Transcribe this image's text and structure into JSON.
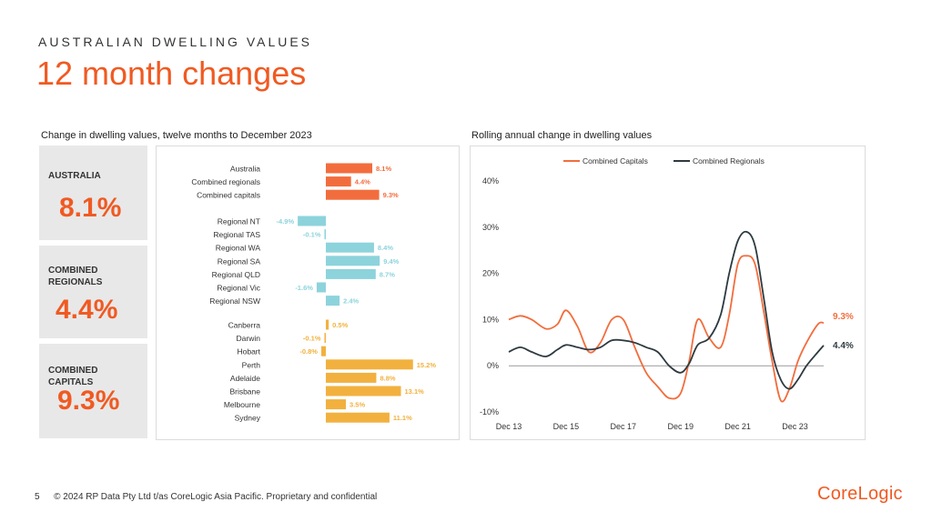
{
  "header": {
    "kicker": "AUSTRALIAN DWELLING VALUES",
    "title": "12 month changes"
  },
  "left_panel": {
    "title": "Change in dwelling values, twelve months to December 2023"
  },
  "right_panel": {
    "title": "Rolling annual change in dwelling values"
  },
  "stats": [
    {
      "label_line1": "AUSTRALIA",
      "label_line2": "",
      "value": "8.1%"
    },
    {
      "label_line1": "COMBINED",
      "label_line2": "REGIONALS",
      "value": "4.4%"
    },
    {
      "label_line1": "COMBINED",
      "label_line2": "CAPITALS",
      "value": "9.3%"
    }
  ],
  "colors": {
    "accent": "#f05a22",
    "combined": "#f26d3d",
    "regional": "#8dd3dc",
    "capital": "#f2b13e",
    "regional_line": "#2d3a40",
    "capitals_line": "#f26d3d"
  },
  "chart_data": [
    {
      "type": "bar",
      "orientation": "horizontal",
      "title": "Change in dwelling values, twelve months to December 2023",
      "groups": [
        {
          "name": "combined",
          "categories": [
            "Australia",
            "Combined regionals",
            "Combined capitals"
          ],
          "values": [
            8.1,
            4.4,
            9.3
          ],
          "labels": [
            "8.1%",
            "4.4%",
            "9.3%"
          ]
        },
        {
          "name": "regional",
          "categories": [
            "Regional NT",
            "Regional TAS",
            "Regional WA",
            "Regional SA",
            "Regional QLD",
            "Regional Vic",
            "Regional NSW"
          ],
          "values": [
            -4.9,
            -0.1,
            8.4,
            9.4,
            8.7,
            -1.6,
            2.4
          ],
          "labels": [
            "-4.9%",
            "-0.1%",
            "8.4%",
            "9.4%",
            "8.7%",
            "-1.6%",
            "2.4%"
          ]
        },
        {
          "name": "capital",
          "categories": [
            "Canberra",
            "Darwin",
            "Hobart",
            "Perth",
            "Adelaide",
            "Brisbane",
            "Melbourne",
            "Sydney"
          ],
          "values": [
            0.5,
            -0.1,
            -0.8,
            15.2,
            8.8,
            13.1,
            3.5,
            11.1
          ],
          "labels": [
            "0.5%",
            "-0.1%",
            "-0.8%",
            "15.2%",
            "8.8%",
            "13.1%",
            "3.5%",
            "11.1%"
          ]
        }
      ]
    },
    {
      "type": "line",
      "title": "Rolling annual change in dwelling values",
      "legend": [
        "Combined Capitals",
        "Combined Regionals"
      ],
      "legend_position": "top",
      "x_range": [
        2013,
        2024
      ],
      "x_ticks": [
        2013,
        2015,
        2017,
        2019,
        2021,
        2023
      ],
      "x_tick_labels": [
        "Dec 13",
        "Dec 15",
        "Dec 17",
        "Dec 19",
        "Dec 21",
        "Dec 23"
      ],
      "ylim": [
        -10,
        40
      ],
      "y_ticks": [
        -10,
        0,
        10,
        20,
        30,
        40
      ],
      "y_tick_labels": [
        "-10%",
        "0%",
        "10%",
        "20%",
        "30%",
        "40%"
      ],
      "series": [
        {
          "name": "Combined Capitals",
          "end_label": "9.3%",
          "x": [
            2013.0,
            2013.4,
            2013.8,
            2014.3,
            2014.7,
            2015.0,
            2015.4,
            2015.8,
            2016.2,
            2016.6,
            2017.0,
            2017.4,
            2017.8,
            2018.2,
            2018.6,
            2019.0,
            2019.3,
            2019.6,
            2020.0,
            2020.4,
            2020.7,
            2021.0,
            2021.3,
            2021.6,
            2021.9,
            2022.2,
            2022.5,
            2022.8,
            2023.1,
            2023.4,
            2023.8,
            2024.0
          ],
          "y": [
            10,
            10.8,
            10,
            8,
            9,
            12,
            8.5,
            3,
            5,
            10,
            10,
            4,
            -1.5,
            -4.5,
            -7,
            -6,
            1,
            10,
            6,
            4,
            11,
            22,
            23.8,
            22,
            12,
            1,
            -7.5,
            -5,
            1,
            5,
            9,
            9.3
          ]
        },
        {
          "name": "Combined Regionals",
          "end_label": "4.4%",
          "x": [
            2013.0,
            2013.4,
            2013.8,
            2014.3,
            2014.7,
            2015.0,
            2015.4,
            2015.8,
            2016.2,
            2016.6,
            2017.0,
            2017.4,
            2017.8,
            2018.2,
            2018.6,
            2019.0,
            2019.3,
            2019.6,
            2020.0,
            2020.4,
            2020.7,
            2021.0,
            2021.3,
            2021.6,
            2021.9,
            2022.2,
            2022.5,
            2022.8,
            2023.1,
            2023.4,
            2023.8,
            2024.0
          ],
          "y": [
            3,
            4,
            3,
            2,
            3.5,
            4.5,
            4,
            3.5,
            4,
            5.5,
            5.5,
            5,
            4,
            3,
            0,
            -1.5,
            0.5,
            4.5,
            6,
            11,
            20,
            27,
            29,
            26,
            15,
            3,
            -3,
            -5,
            -3,
            0,
            3,
            4.4
          ]
        }
      ]
    }
  ],
  "footer": {
    "page_number": "5",
    "copyright": "© 2024 RP Data Pty Ltd t/as CoreLogic Asia Pacific. Proprietary and confidential"
  },
  "logo": {
    "text": "CoreLogic"
  }
}
